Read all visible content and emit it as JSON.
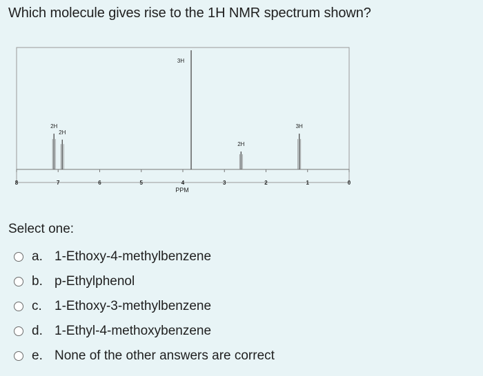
{
  "question": "Which molecule gives rise to the 1H NMR spectrum shown?",
  "select_label": "Select one:",
  "options": [
    {
      "letter": "a.",
      "text": "1-Ethoxy-4-methylbenzene"
    },
    {
      "letter": "b.",
      "text": "p-Ethylphenol"
    },
    {
      "letter": "c.",
      "text": "1-Ethoxy-3-methylbenzene"
    },
    {
      "letter": "d.",
      "text": "1-Ethyl-4-methoxybenzene"
    },
    {
      "letter": "e.",
      "text": "None of the other answers are correct"
    }
  ],
  "chart_data": {
    "type": "line",
    "xlabel": "PPM",
    "x_ticks": [
      "8",
      "7",
      "6",
      "5",
      "4",
      "3",
      "2",
      "1",
      "0"
    ],
    "xlim": [
      8,
      0
    ],
    "peaks": [
      {
        "ppm": 7.1,
        "label": "2H",
        "relative_height": 0.3
      },
      {
        "ppm": 6.9,
        "label": "2H",
        "relative_height": 0.25
      },
      {
        "ppm": 3.8,
        "label": "3H",
        "relative_height": 1.0
      },
      {
        "ppm": 2.6,
        "label": "2H",
        "relative_height": 0.15
      },
      {
        "ppm": 1.2,
        "label": "3H",
        "relative_height": 0.3
      }
    ]
  }
}
